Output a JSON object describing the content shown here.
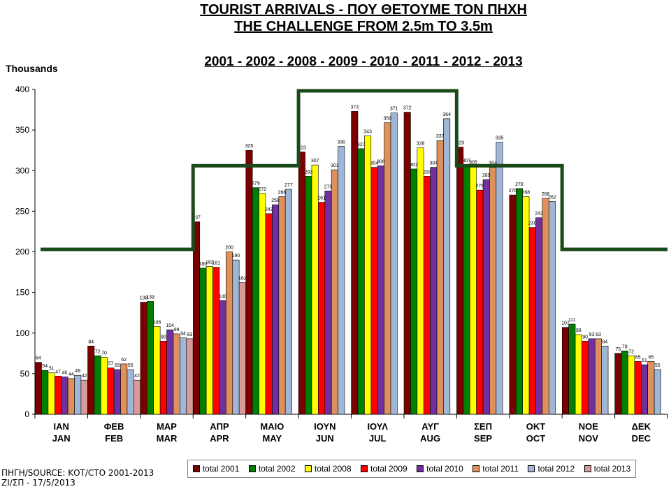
{
  "header": {
    "title_line1": "TOURIST ARRIVALS - ΠΟΥ ΘΕΤΟΥΜΕ ΤΟΝ ΠΗΧΗ",
    "title_line2": "THE CHALLENGE FROM 2.5m TO 3.5m",
    "years_line": "2001 - 2002 - 2008 - 2009 - 2010 - 2011 - 2012 - 2013",
    "units": "Thousands"
  },
  "source": {
    "line1": "ΠΗΓΗ/SOURCE: ΚΟΤ/CTO  2001-2013",
    "line2": "ΖΙ/ΣΠ - 17/5/2013"
  },
  "chart_data": {
    "type": "bar",
    "ylim": [
      0,
      400
    ],
    "yticks": [
      "0",
      "50",
      "100",
      "150",
      "200",
      "250",
      "300",
      "350",
      "400"
    ],
    "grid": false,
    "legend": "bottom",
    "categories": [
      "ΙΑΝ\nJAN",
      "ΦΕΒ\nFEB",
      "ΜΑΡ\nMAR",
      "ΑΠΡ\nAPR",
      "ΜΑΙΟ\nMAY",
      "ΙΟΥΝ\nJUN",
      "ΙΟΥΛ\nJUL",
      "ΑΥΓ\nAUG",
      "ΣΕΠ\nSEP",
      "ΟΚΤ\nOCT",
      "ΝΟΕ\nNOV",
      "ΔΕΚ\nDEC"
    ],
    "series": [
      {
        "name": "total 2001",
        "color": "#7a0000",
        "values": [
          64,
          84,
          138,
          237,
          325,
          323,
          373,
          372,
          329,
          270,
          107,
          75
        ]
      },
      {
        "name": "total 2002",
        "color": "#008000",
        "values": [
          54,
          72,
          139,
          180,
          279,
          293,
          327,
          302,
          307,
          278,
          111,
          78
        ]
      },
      {
        "name": "total 2008",
        "color": "#ffff00",
        "values": [
          51,
          70,
          108,
          182,
          272,
          307,
          343,
          328,
          305,
          268,
          98,
          72
        ]
      },
      {
        "name": "total 2009",
        "color": "#ff0000",
        "values": [
          47,
          57,
          90,
          181,
          247,
          261,
          304,
          293,
          276,
          230,
          90,
          65
        ]
      },
      {
        "name": "total 2010",
        "color": "#7030a0",
        "values": [
          46,
          55,
          104,
          140,
          258,
          275,
          306,
          304,
          289,
          242,
          93,
          61
        ]
      },
      {
        "name": "total 2011",
        "color": "#e0905a",
        "values": [
          44,
          62,
          99,
          200,
          268,
          301,
          359,
          337,
          304,
          266,
          93,
          65
        ]
      },
      {
        "name": "total 2012",
        "color": "#9fb6d6",
        "values": [
          48,
          55,
          94,
          190,
          277,
          330,
          371,
          364,
          335,
          262,
          84,
          55
        ]
      },
      {
        "name": "total 2013",
        "color": "#d99a9a",
        "values": [
          42,
          42,
          93,
          162,
          null,
          null,
          null,
          null,
          null,
          null,
          null,
          null
        ]
      }
    ],
    "target_line": {
      "color": "#1a4a1a",
      "levels": [
        203,
        203,
        203,
        306,
        306,
        400,
        400,
        400,
        306,
        306,
        203,
        203
      ]
    },
    "value_labels": [
      [
        "64",
        "84",
        "138",
        "237",
        "325",
        "323",
        "373",
        "372",
        "329",
        "270",
        "107",
        "75"
      ],
      [
        "54",
        "72",
        "139",
        "180",
        "279",
        "293",
        "327",
        "302",
        "307",
        "278",
        "111",
        "78"
      ],
      [
        "51",
        "70",
        "108",
        "182",
        "272",
        "307",
        "343",
        "328",
        "305",
        "268",
        "98",
        "72"
      ],
      [
        "47",
        "57",
        "90",
        "181",
        "247",
        "261",
        "304",
        "293",
        "276",
        "230",
        "90",
        "65"
      ],
      [
        "46",
        "55",
        "104",
        "140",
        "258",
        "275",
        "306",
        "304",
        "289",
        "242",
        "93",
        "61"
      ],
      [
        "44",
        "62",
        "99",
        "200",
        "268",
        "301",
        "359",
        "337",
        "304",
        "266",
        "93",
        "65"
      ],
      [
        "48",
        "55",
        "94",
        "190",
        "277",
        "330",
        "371",
        "364",
        "335",
        "262",
        "84",
        "55"
      ],
      [
        "42",
        "42",
        "93",
        "162",
        "",
        "",
        "",
        "",
        "",
        "",
        "",
        ""
      ]
    ]
  }
}
